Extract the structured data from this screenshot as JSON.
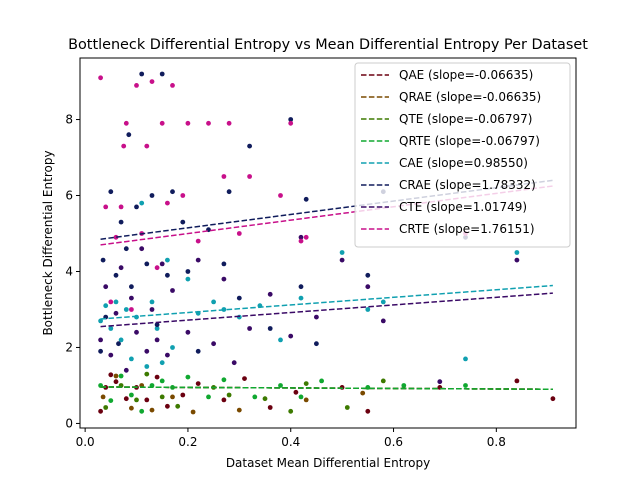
{
  "chart_data": {
    "type": "scatter",
    "title": "Bottleneck Differential Entropy vs Mean Differential Entropy Per Dataset",
    "xlabel": "Dataset Mean Differential Entropy",
    "ylabel": "Bottleneck Differential Entropy",
    "xlim": [
      -0.01,
      0.955
    ],
    "ylim": [
      -0.12,
      9.62
    ],
    "x_ticks": [
      0.0,
      0.2,
      0.4,
      0.6,
      0.8
    ],
    "x_tick_labels": [
      "0.0",
      "0.2",
      "0.4",
      "0.6",
      "0.8"
    ],
    "y_ticks": [
      0,
      2,
      4,
      6,
      8
    ],
    "y_tick_labels": [
      "0",
      "2",
      "4",
      "6",
      "8"
    ],
    "grid": false,
    "legend_position": "top-right",
    "series": [
      {
        "name": "QAE (slope=-0.06635)",
        "color": "#6b0010",
        "trend": [
          [
            0.03,
            0.96
          ],
          [
            0.91,
            0.9
          ]
        ],
        "points": [
          [
            0.03,
            0.32
          ],
          [
            0.04,
            0.95
          ],
          [
            0.05,
            1.28
          ],
          [
            0.06,
            1.1
          ],
          [
            0.08,
            0.65
          ],
          [
            0.1,
            0.95
          ],
          [
            0.12,
            0.62
          ],
          [
            0.14,
            1.22
          ],
          [
            0.16,
            0.45
          ],
          [
            0.19,
            0.75
          ],
          [
            0.22,
            1.05
          ],
          [
            0.27,
            0.62
          ],
          [
            0.31,
            1.18
          ],
          [
            0.36,
            0.42
          ],
          [
            0.41,
            0.82
          ],
          [
            0.5,
            0.95
          ],
          [
            0.55,
            0.32
          ],
          [
            0.69,
            0.95
          ],
          [
            0.84,
            1.12
          ],
          [
            0.91,
            0.65
          ]
        ]
      },
      {
        "name": "QRAE (slope=-0.06635)",
        "color": "#7a4a00",
        "trend": [
          [
            0.03,
            0.96
          ],
          [
            0.91,
            0.9
          ]
        ],
        "points": [
          [
            0.035,
            0.7
          ],
          [
            0.06,
            1.25
          ],
          [
            0.09,
            0.4
          ],
          [
            0.11,
            1.0
          ],
          [
            0.13,
            0.35
          ],
          [
            0.17,
            0.7
          ],
          [
            0.21,
            0.3
          ],
          [
            0.3,
            0.35
          ],
          [
            0.43,
            0.62
          ],
          [
            0.54,
            0.8
          ]
        ]
      },
      {
        "name": "QTE (slope=-0.06797)",
        "color": "#3d7a00",
        "trend": [
          [
            0.03,
            0.96
          ],
          [
            0.91,
            0.9
          ]
        ],
        "points": [
          [
            0.04,
            0.42
          ],
          [
            0.07,
            1.0
          ],
          [
            0.1,
            0.62
          ],
          [
            0.12,
            1.3
          ],
          [
            0.15,
            0.7
          ],
          [
            0.18,
            0.45
          ],
          [
            0.25,
            0.95
          ],
          [
            0.28,
            0.75
          ],
          [
            0.35,
            0.65
          ],
          [
            0.4,
            0.32
          ],
          [
            0.43,
            1.05
          ],
          [
            0.51,
            0.42
          ],
          [
            0.58,
            1.12
          ]
        ]
      },
      {
        "name": "QRTE (slope=-0.06797)",
        "color": "#10a830",
        "trend": [
          [
            0.03,
            0.96
          ],
          [
            0.91,
            0.9
          ]
        ],
        "points": [
          [
            0.03,
            1.0
          ],
          [
            0.05,
            0.6
          ],
          [
            0.07,
            1.25
          ],
          [
            0.09,
            0.75
          ],
          [
            0.11,
            0.32
          ],
          [
            0.13,
            1.0
          ],
          [
            0.15,
            1.12
          ],
          [
            0.17,
            0.95
          ],
          [
            0.2,
            1.22
          ],
          [
            0.24,
            0.7
          ],
          [
            0.27,
            1.15
          ],
          [
            0.33,
            0.7
          ],
          [
            0.38,
            1.0
          ],
          [
            0.42,
            0.7
          ],
          [
            0.46,
            1.12
          ],
          [
            0.55,
            0.95
          ],
          [
            0.62,
            1.0
          ],
          [
            0.74,
            1.0
          ]
        ]
      },
      {
        "name": "CAE (slope=0.98550)",
        "color": "#10a0b0",
        "trend": [
          [
            0.03,
            2.75
          ],
          [
            0.91,
            3.63
          ]
        ],
        "points": [
          [
            0.03,
            2.7
          ],
          [
            0.04,
            3.1
          ],
          [
            0.05,
            2.5
          ],
          [
            0.06,
            3.2
          ],
          [
            0.07,
            2.2
          ],
          [
            0.08,
            3.0
          ],
          [
            0.09,
            1.7
          ],
          [
            0.1,
            2.8
          ],
          [
            0.11,
            5.8
          ],
          [
            0.12,
            1.5
          ],
          [
            0.13,
            3.2
          ],
          [
            0.14,
            2.5
          ],
          [
            0.15,
            1.6
          ],
          [
            0.16,
            4.3
          ],
          [
            0.17,
            2.0
          ],
          [
            0.2,
            3.8
          ],
          [
            0.22,
            2.9
          ],
          [
            0.25,
            3.2
          ],
          [
            0.27,
            3.0
          ],
          [
            0.3,
            2.8
          ],
          [
            0.34,
            3.1
          ],
          [
            0.38,
            2.2
          ],
          [
            0.42,
            3.3
          ],
          [
            0.5,
            4.5
          ],
          [
            0.55,
            3.0
          ],
          [
            0.58,
            3.2
          ],
          [
            0.74,
            1.7
          ],
          [
            0.84,
            4.5
          ]
        ]
      },
      {
        "name": "CRAE (slope=1.78332)",
        "color": "#101c5c",
        "trend": [
          [
            0.03,
            4.85
          ],
          [
            0.91,
            6.4
          ]
        ],
        "points": [
          [
            0.03,
            1.9
          ],
          [
            0.035,
            4.3
          ],
          [
            0.04,
            2.8
          ],
          [
            0.05,
            6.1
          ],
          [
            0.06,
            3.9
          ],
          [
            0.065,
            2.1
          ],
          [
            0.07,
            5.3
          ],
          [
            0.08,
            4.6
          ],
          [
            0.085,
            7.6
          ],
          [
            0.09,
            3.6
          ],
          [
            0.1,
            5.7
          ],
          [
            0.11,
            9.2
          ],
          [
            0.12,
            4.2
          ],
          [
            0.13,
            6.0
          ],
          [
            0.14,
            2.6
          ],
          [
            0.15,
            9.2
          ],
          [
            0.16,
            3.9
          ],
          [
            0.17,
            6.1
          ],
          [
            0.19,
            5.3
          ],
          [
            0.2,
            4.0
          ],
          [
            0.22,
            1.9
          ],
          [
            0.24,
            5.1
          ],
          [
            0.27,
            4.2
          ],
          [
            0.28,
            6.1
          ],
          [
            0.3,
            3.3
          ],
          [
            0.32,
            7.3
          ],
          [
            0.36,
            2.5
          ],
          [
            0.4,
            8.0
          ],
          [
            0.42,
            3.6
          ],
          [
            0.43,
            5.9
          ],
          [
            0.45,
            2.1
          ],
          [
            0.55,
            3.9
          ],
          [
            0.58,
            6.1
          ],
          [
            0.74,
            4.9
          ]
        ]
      },
      {
        "name": "CTE (slope=1.01749)",
        "color": "#3a0a66",
        "trend": [
          [
            0.03,
            2.55
          ],
          [
            0.91,
            3.43
          ]
        ],
        "points": [
          [
            0.03,
            2.2
          ],
          [
            0.04,
            3.6
          ],
          [
            0.05,
            1.8
          ],
          [
            0.06,
            2.9
          ],
          [
            0.07,
            4.1
          ],
          [
            0.08,
            1.4
          ],
          [
            0.09,
            3.3
          ],
          [
            0.1,
            2.4
          ],
          [
            0.11,
            4.6
          ],
          [
            0.12,
            1.9
          ],
          [
            0.13,
            3.0
          ],
          [
            0.14,
            2.2
          ],
          [
            0.15,
            4.2
          ],
          [
            0.16,
            1.8
          ],
          [
            0.17,
            3.5
          ],
          [
            0.2,
            2.4
          ],
          [
            0.22,
            4.3
          ],
          [
            0.25,
            2.1
          ],
          [
            0.27,
            3.8
          ],
          [
            0.29,
            1.6
          ],
          [
            0.32,
            2.5
          ],
          [
            0.36,
            3.4
          ],
          [
            0.4,
            2.3
          ],
          [
            0.42,
            4.9
          ],
          [
            0.45,
            2.8
          ],
          [
            0.5,
            4.3
          ],
          [
            0.55,
            3.6
          ],
          [
            0.58,
            2.7
          ],
          [
            0.69,
            1.1
          ],
          [
            0.84,
            4.3
          ]
        ]
      },
      {
        "name": "CRTE (slope=1.76151)",
        "color": "#c8108a",
        "trend": [
          [
            0.03,
            4.7
          ],
          [
            0.91,
            6.25
          ]
        ],
        "points": [
          [
            0.03,
            9.1
          ],
          [
            0.04,
            5.7
          ],
          [
            0.05,
            3.2
          ],
          [
            0.06,
            4.9
          ],
          [
            0.07,
            5.7
          ],
          [
            0.075,
            7.3
          ],
          [
            0.08,
            7.9
          ],
          [
            0.09,
            3.0
          ],
          [
            0.1,
            8.9
          ],
          [
            0.11,
            5.0
          ],
          [
            0.12,
            7.3
          ],
          [
            0.13,
            9.0
          ],
          [
            0.14,
            4.1
          ],
          [
            0.15,
            7.9
          ],
          [
            0.16,
            5.8
          ],
          [
            0.17,
            8.9
          ],
          [
            0.19,
            6.0
          ],
          [
            0.2,
            7.9
          ],
          [
            0.22,
            4.8
          ],
          [
            0.24,
            7.9
          ],
          [
            0.27,
            6.5
          ],
          [
            0.28,
            7.9
          ],
          [
            0.3,
            5.0
          ],
          [
            0.32,
            6.5
          ],
          [
            0.38,
            6.0
          ],
          [
            0.4,
            7.9
          ],
          [
            0.42,
            4.8
          ],
          [
            0.43,
            4.9
          ],
          [
            0.74,
            5.0
          ]
        ]
      }
    ]
  }
}
